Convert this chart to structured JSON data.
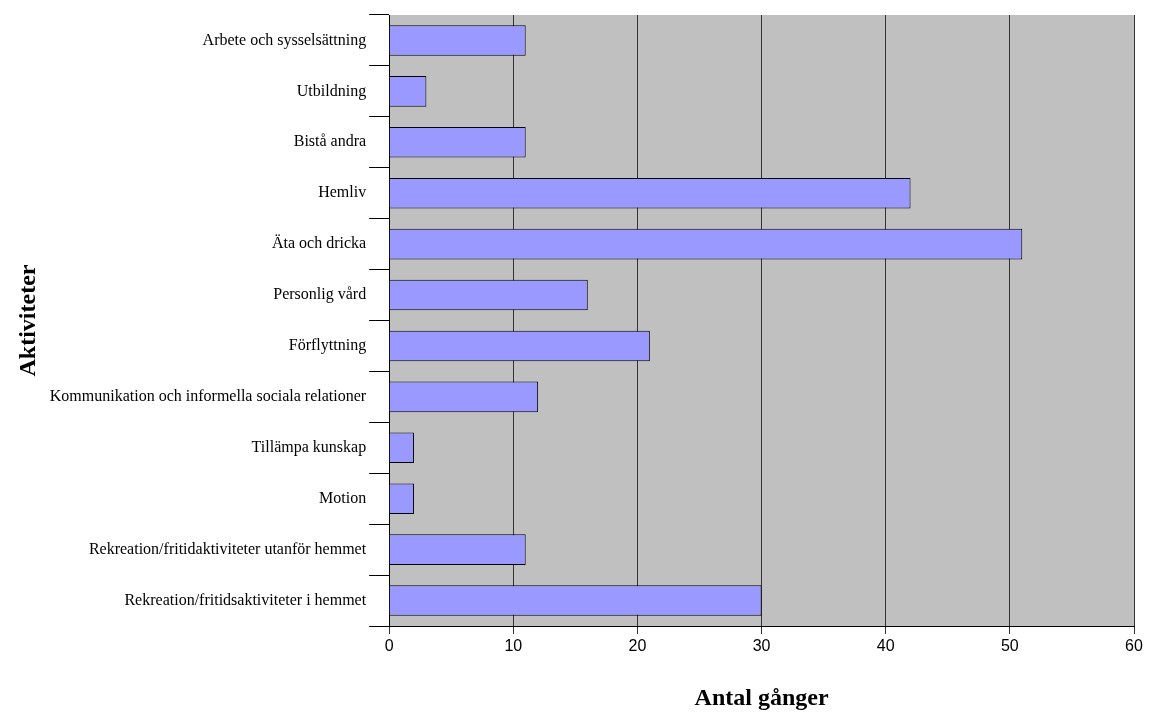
{
  "chart_data": {
    "type": "bar",
    "orientation": "horizontal",
    "xlabel": "Antal gånger",
    "ylabel": "Aktiviteter",
    "categories": [
      "Arbete och sysselsättning",
      "Utbildning",
      "Bistå andra",
      "Hemliv",
      "Äta och dricka",
      "Personlig vård",
      "Förflyttning",
      "Kommunikation och informella sociala relationer",
      "Tillämpa kunskap",
      "Motion",
      "Rekreation/fritidaktiviteter utanför hemmet",
      "Rekreation/fritidsaktiviteter i hemmet"
    ],
    "values": [
      11,
      3,
      11,
      42,
      51,
      16,
      21,
      12,
      2,
      2,
      11,
      30
    ],
    "color": "#9999ff",
    "xlim": [
      0,
      60
    ],
    "xticks": [
      0,
      10,
      20,
      30,
      40,
      50,
      60
    ],
    "grid": "x",
    "legend": false
  }
}
